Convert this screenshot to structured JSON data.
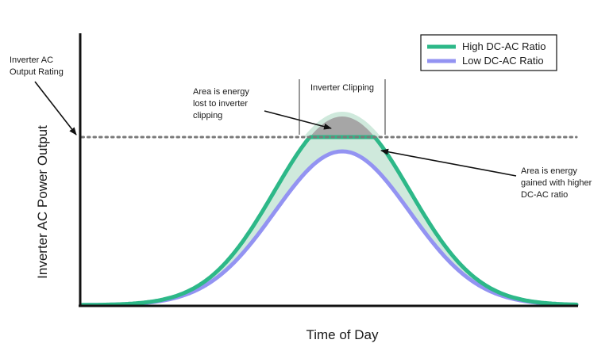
{
  "chart_data": {
    "type": "line",
    "xlabel": "Time of Day",
    "ylabel": "Inverter AC Power Output",
    "legend_position": "top-right",
    "series": [
      {
        "name": "High DC-AC Ratio",
        "color": "#2db888",
        "style": "solid",
        "clipped_at": "Inverter AC Output Rating"
      },
      {
        "name": "Low DC-AC Ratio",
        "color": "#9393f2",
        "style": "solid"
      }
    ],
    "reference_lines": [
      {
        "label": "Inverter AC Output Rating",
        "style": "dotted",
        "color": "#7a7a7a"
      }
    ],
    "shaded_regions": [
      {
        "color": "#cfe9dc",
        "meaning": "energy gained with higher DC-AC ratio"
      },
      {
        "color": "#a6a6a6",
        "meaning": "energy lost to inverter clipping"
      }
    ]
  },
  "labels": {
    "inverter_rating_line1": "Inverter AC",
    "inverter_rating_line2": "Output Rating",
    "clipping_bracket": "Inverter Clipping",
    "lost_line1": "Area is energy",
    "lost_line2": "lost to inverter",
    "lost_line3": "clipping",
    "gained_line1": "Area is energy",
    "gained_line2": "gained with higher",
    "gained_line3": "DC-AC ratio"
  }
}
